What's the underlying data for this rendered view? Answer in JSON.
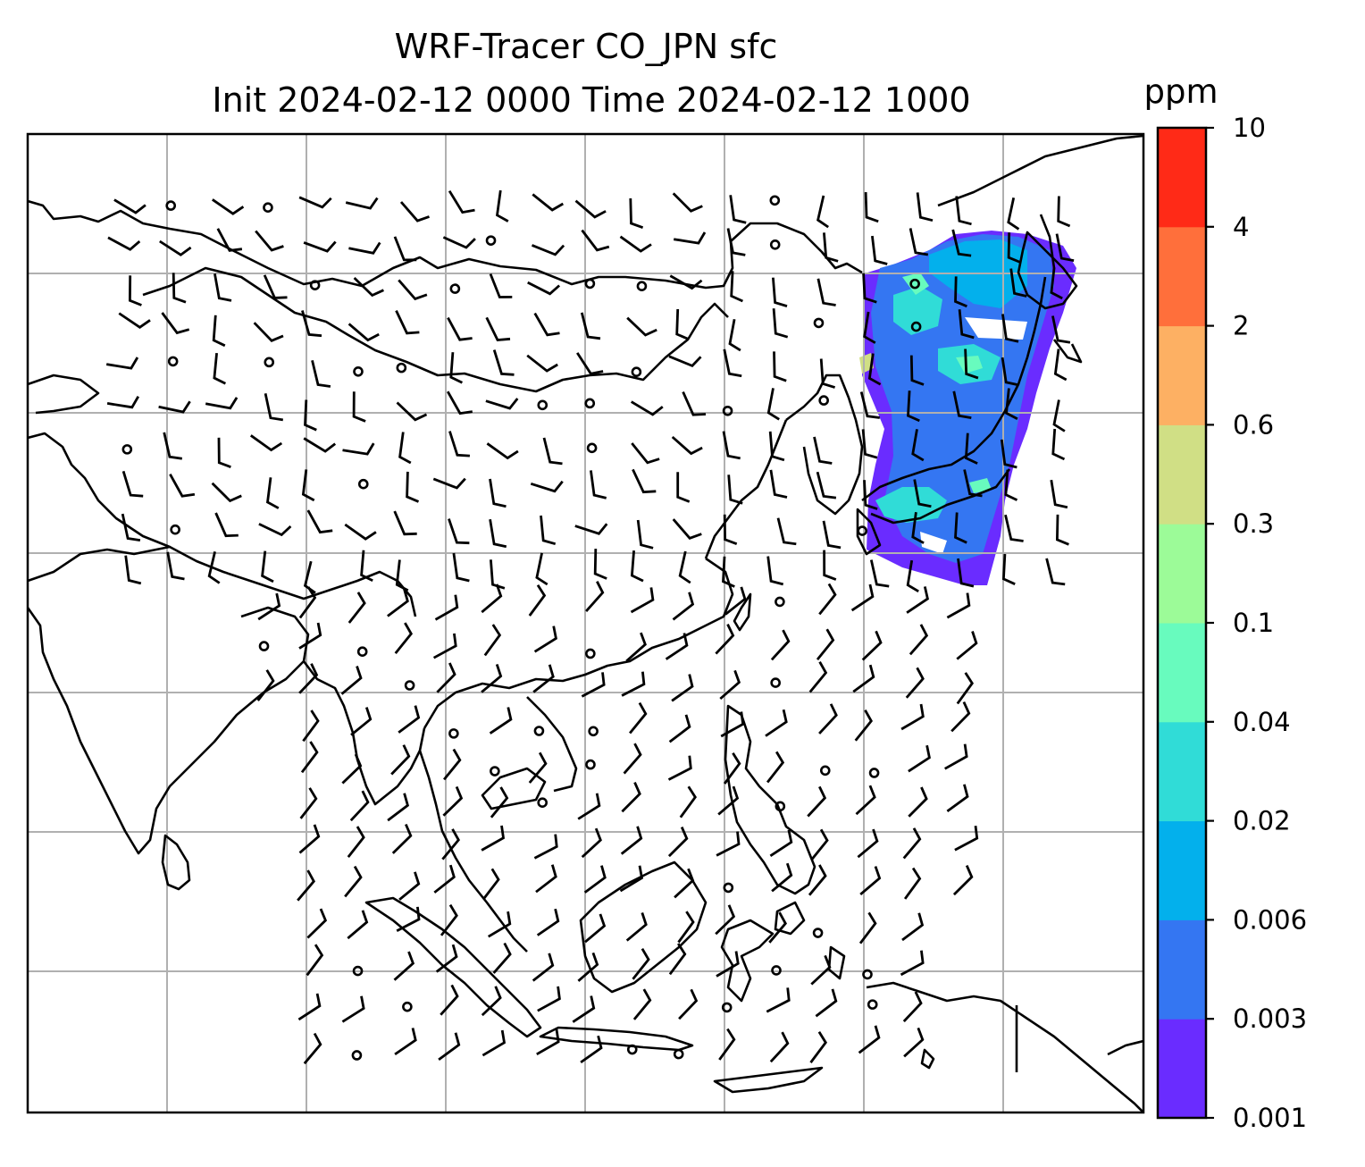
{
  "chart_data": {
    "type": "heatmap",
    "title_line1": "WRF-Tracer CO_JPN sfc",
    "title_line2": "Init 2024-02-12 0000 Time 2024-02-12 1000",
    "colorbar": {
      "unit": "ppm",
      "levels": [
        "0.001",
        "0.003",
        "0.006",
        "0.02",
        "0.04",
        "0.1",
        "0.3",
        "0.6",
        "2",
        "4",
        "10"
      ],
      "colors": [
        "#6a2cff",
        "#3476f2",
        "#03b0ec",
        "#30dcd7",
        "#68fbbe",
        "#9cfb98",
        "#d0df85",
        "#fdb063",
        "#ff6f3b",
        "#ff2a17"
      ]
    },
    "gridlines": "on",
    "overlays": [
      "coastlines",
      "wind barbs"
    ]
  }
}
